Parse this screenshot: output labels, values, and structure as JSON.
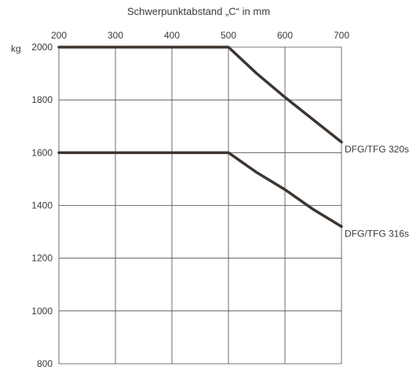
{
  "chart_data": {
    "type": "line",
    "title": "Schwerpunktabstand „C“ in mm",
    "xlabel": "Schwerpunktabstand „C“ in mm",
    "ylabel": "kg",
    "x_ticks": [
      "200",
      "300",
      "400",
      "500",
      "600",
      "700"
    ],
    "y_ticks": [
      "2000",
      "1800",
      "1600",
      "1400",
      "1200",
      "1000",
      "800"
    ],
    "xlim": [
      200,
      700
    ],
    "ylim": [
      800,
      2000
    ],
    "x_axis_position": "top",
    "grid": true,
    "series": [
      {
        "name": "DFG/TFG 320s",
        "x": [
          200,
          300,
          400,
          500,
          550,
          600,
          650,
          700
        ],
        "y": [
          2000,
          2000,
          2000,
          2000,
          1900,
          1810,
          1725,
          1640
        ]
      },
      {
        "name": "DFG/TFG 316s",
        "x": [
          200,
          300,
          400,
          500,
          550,
          600,
          650,
          700
        ],
        "y": [
          1600,
          1600,
          1600,
          1600,
          1525,
          1460,
          1385,
          1320
        ]
      }
    ],
    "line_color": "#3d3530"
  }
}
